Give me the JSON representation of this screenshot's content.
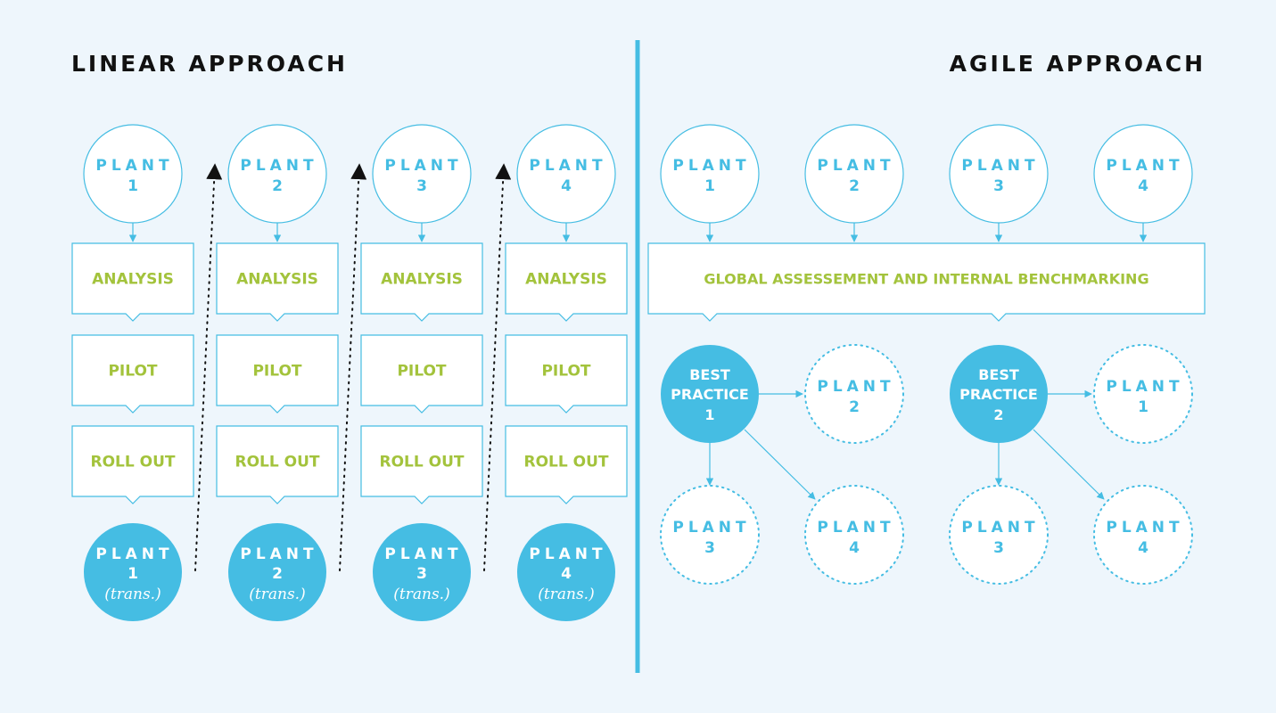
{
  "colors": {
    "background": "#eef6fc",
    "accent": "#45bde3",
    "step_text": "#a3c33c",
    "title_text": "#111111",
    "box_fill": "#ffffff"
  },
  "linear": {
    "title": "LINEAR APPROACH",
    "plant_word": "PLANT",
    "trans_label": "(trans.)",
    "steps": [
      "ANALYSIS",
      "PILOT",
      "ROLL OUT"
    ],
    "plants": [
      "1",
      "2",
      "3",
      "4"
    ]
  },
  "agile": {
    "title": "AGILE APPROACH",
    "plant_word": "PLANT",
    "plants": [
      "1",
      "2",
      "3",
      "4"
    ],
    "assessment_label": "GLOBAL ASSESSEMENT AND INTERNAL BENCHMARKING",
    "best_practices": [
      {
        "line1": "BEST",
        "line2": "PRACTICE",
        "number": "1",
        "targets": [
          "2",
          "3",
          "4"
        ]
      },
      {
        "line1": "BEST",
        "line2": "PRACTICE",
        "number": "2",
        "targets": [
          "1",
          "3",
          "4"
        ]
      }
    ]
  }
}
